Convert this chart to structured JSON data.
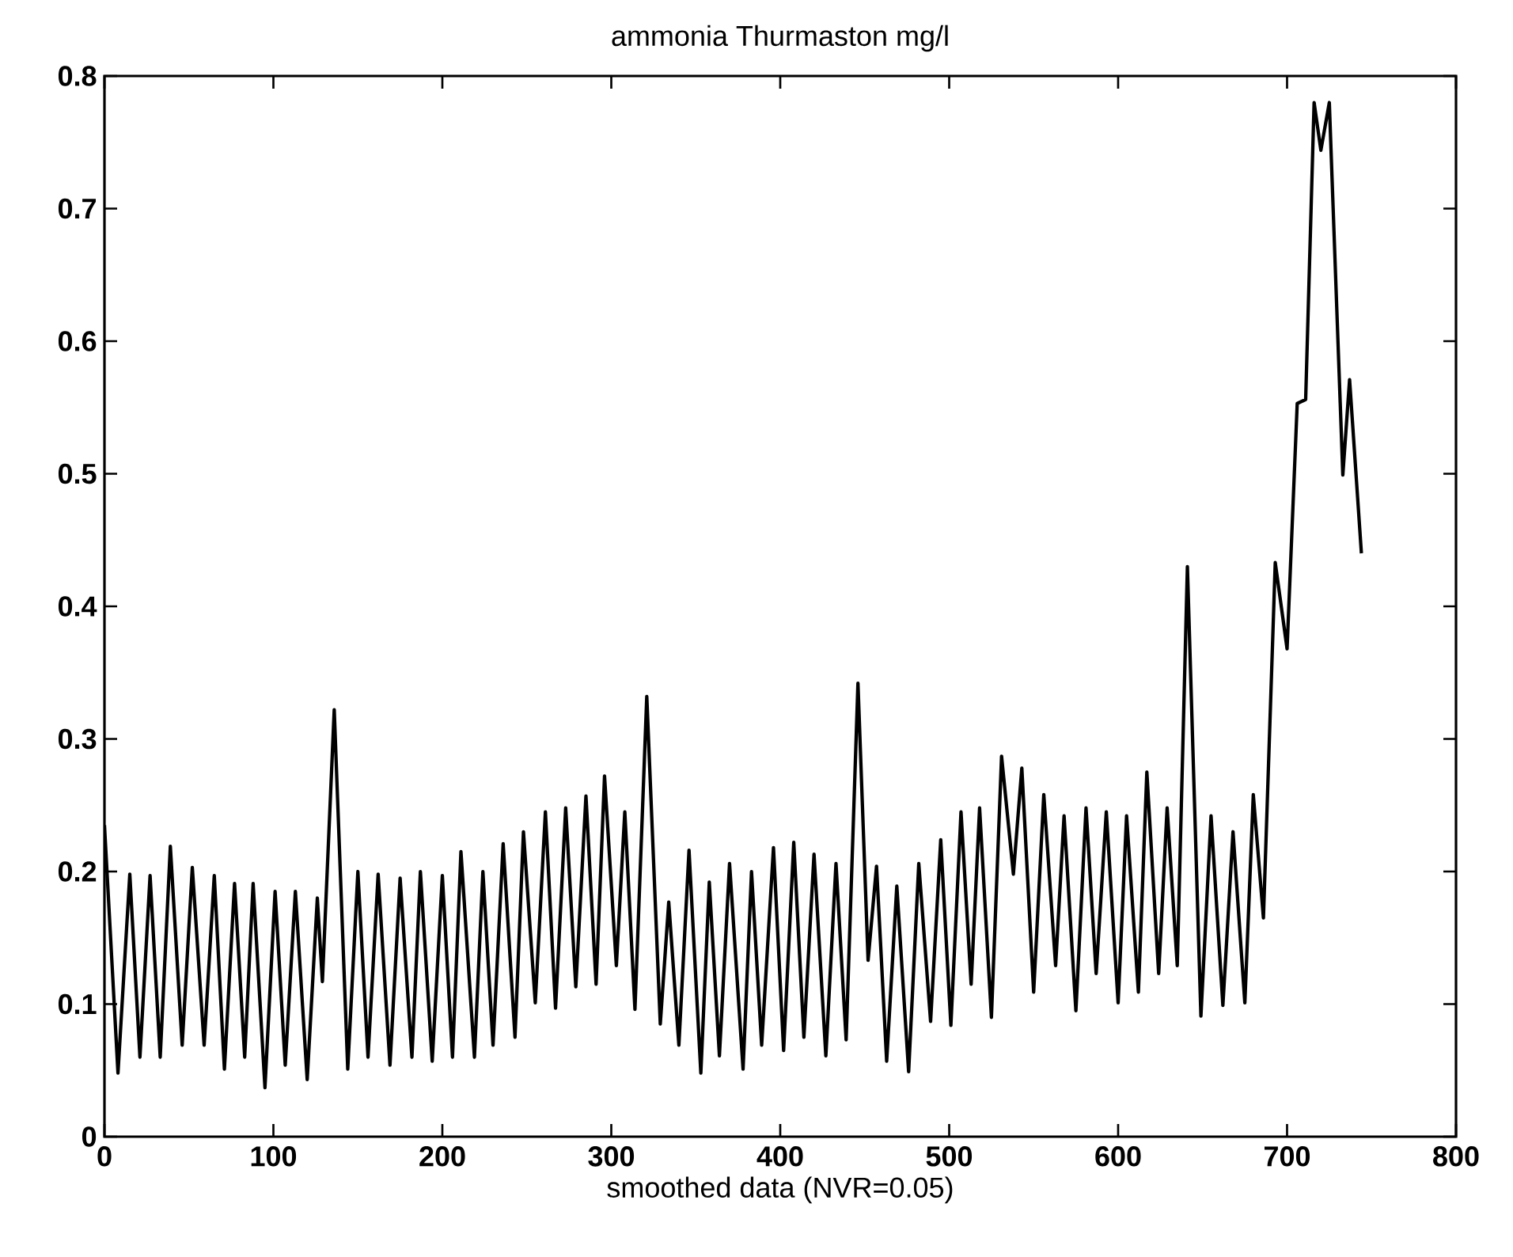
{
  "chart_data": {
    "type": "line",
    "title": "ammonia        Thurmaston  mg/l",
    "xlabel": "smoothed data (NVR=0.05)",
    "xlim": [
      0,
      800
    ],
    "ylim": [
      0,
      0.8
    ],
    "xticks": [
      0,
      100,
      200,
      300,
      400,
      500,
      600,
      700,
      800
    ],
    "yticks": [
      0,
      0.1,
      0.2,
      0.3,
      0.4,
      0.5,
      0.6,
      0.7,
      0.8
    ],
    "series": [
      {
        "color": "#000000",
        "x": [
          0,
          8,
          15,
          21,
          27,
          33,
          39,
          46,
          52,
          59,
          65,
          71,
          77,
          83,
          88,
          95,
          101,
          107,
          113,
          120,
          126,
          129,
          136,
          144,
          150,
          156,
          162,
          169,
          175,
          182,
          187,
          194,
          200,
          206,
          211,
          219,
          224,
          230,
          236,
          243,
          248,
          255,
          261,
          267,
          273,
          279,
          285,
          291,
          296,
          303,
          308,
          314,
          321,
          329,
          334,
          340,
          346,
          353,
          358,
          364,
          370,
          378,
          383,
          389,
          396,
          402,
          408,
          414,
          420,
          427,
          433,
          439,
          446,
          452,
          457,
          463,
          469,
          476,
          482,
          489,
          495,
          501,
          507,
          513,
          518,
          525,
          531,
          538,
          543,
          550,
          556,
          563,
          568,
          575,
          581,
          587,
          593,
          600,
          605,
          612,
          617,
          624,
          629,
          635,
          641,
          649,
          655,
          662,
          668,
          675,
          680,
          686,
          693,
          700,
          706,
          711,
          716,
          720,
          725,
          733,
          737,
          744
        ],
        "values": [
          0.235,
          0.048,
          0.198,
          0.06,
          0.197,
          0.06,
          0.219,
          0.069,
          0.203,
          0.069,
          0.197,
          0.051,
          0.191,
          0.06,
          0.191,
          0.037,
          0.185,
          0.054,
          0.185,
          0.043,
          0.18,
          0.117,
          0.322,
          0.051,
          0.2,
          0.06,
          0.198,
          0.054,
          0.195,
          0.06,
          0.2,
          0.057,
          0.197,
          0.06,
          0.215,
          0.06,
          0.2,
          0.069,
          0.221,
          0.075,
          0.23,
          0.101,
          0.245,
          0.097,
          0.248,
          0.113,
          0.257,
          0.115,
          0.272,
          0.129,
          0.245,
          0.096,
          0.332,
          0.085,
          0.177,
          0.069,
          0.216,
          0.048,
          0.192,
          0.061,
          0.206,
          0.051,
          0.2,
          0.069,
          0.218,
          0.065,
          0.222,
          0.075,
          0.213,
          0.061,
          0.206,
          0.073,
          0.342,
          0.133,
          0.204,
          0.057,
          0.189,
          0.049,
          0.206,
          0.087,
          0.224,
          0.084,
          0.245,
          0.115,
          0.248,
          0.09,
          0.287,
          0.198,
          0.278,
          0.109,
          0.258,
          0.129,
          0.242,
          0.095,
          0.248,
          0.123,
          0.245,
          0.101,
          0.242,
          0.109,
          0.275,
          0.123,
          0.248,
          0.129,
          0.43,
          0.091,
          0.242,
          0.099,
          0.23,
          0.101,
          0.258,
          0.165,
          0.433,
          0.368,
          0.553,
          0.556,
          0.78,
          0.744,
          0.78,
          0.499,
          0.571,
          0.44
        ]
      }
    ]
  }
}
